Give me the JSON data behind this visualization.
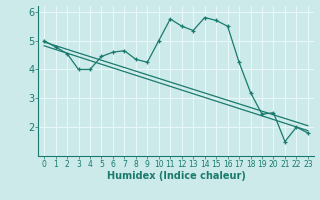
{
  "bg_color": "#cceaea",
  "grid_color": "#e8f8f8",
  "line_color": "#1a7a6e",
  "xlabel": "Humidex (Indice chaleur)",
  "xlim": [
    -0.5,
    23.5
  ],
  "ylim": [
    1.0,
    6.2
  ],
  "xticks": [
    0,
    1,
    2,
    3,
    4,
    5,
    6,
    7,
    8,
    9,
    10,
    11,
    12,
    13,
    14,
    15,
    16,
    17,
    18,
    19,
    20,
    21,
    22,
    23
  ],
  "yticks": [
    2,
    3,
    4,
    5,
    6
  ],
  "ytick_labels": [
    "2",
    "3",
    "4",
    "5",
    "6"
  ],
  "main_x": [
    0,
    1,
    2,
    3,
    4,
    5,
    6,
    7,
    8,
    9,
    10,
    11,
    12,
    13,
    14,
    15,
    16,
    17,
    18,
    19,
    20,
    21,
    22,
    23
  ],
  "main_y": [
    5.0,
    4.78,
    4.55,
    4.0,
    4.0,
    4.45,
    4.6,
    4.65,
    4.35,
    4.25,
    5.0,
    5.75,
    5.5,
    5.35,
    5.8,
    5.7,
    5.5,
    4.25,
    3.2,
    2.45,
    2.5,
    1.5,
    2.0,
    1.8
  ],
  "line2_x": [
    0,
    23
  ],
  "line2_y": [
    4.95,
    2.05
  ],
  "line3_x": [
    0,
    23
  ],
  "line3_y": [
    4.82,
    1.88
  ],
  "figsize": [
    3.2,
    2.0
  ],
  "dpi": 100
}
